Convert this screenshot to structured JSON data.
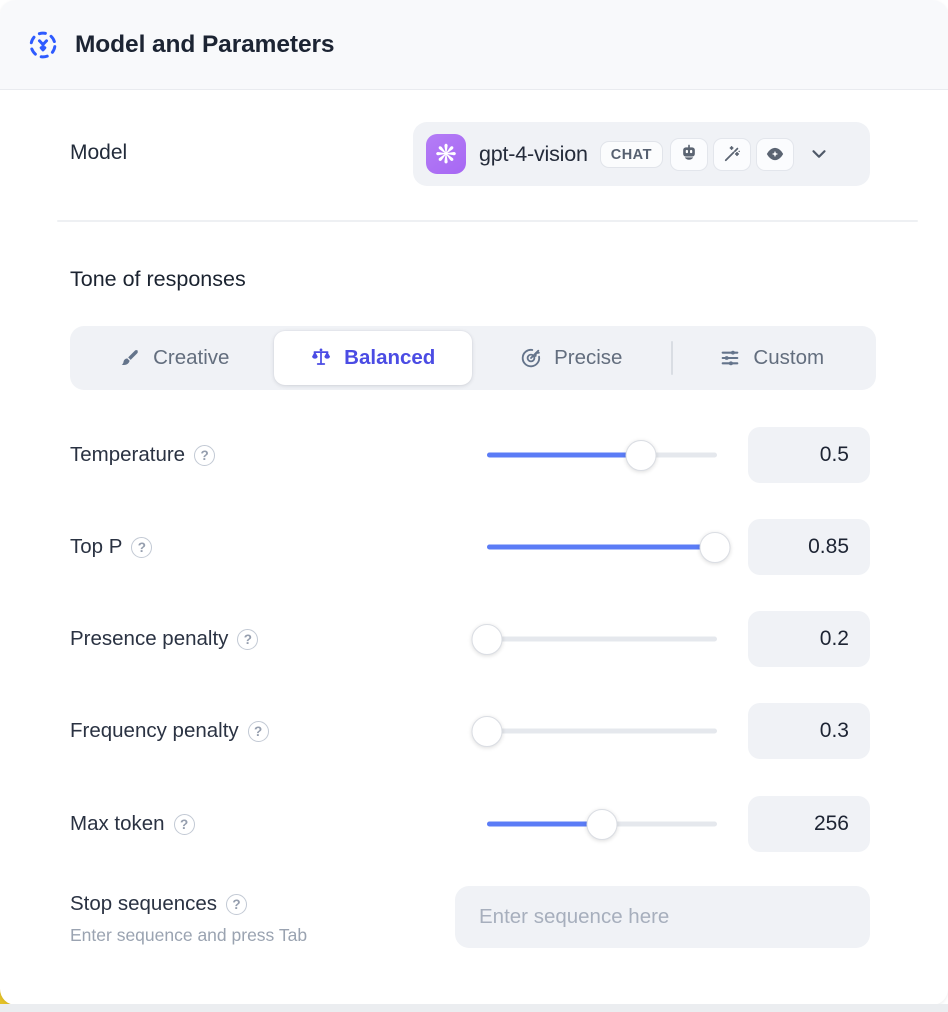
{
  "header": {
    "title": "Model and Parameters"
  },
  "model_row": {
    "label": "Model",
    "selected_model": "gpt-4-vision",
    "type_badge": "CHAT",
    "provider_icon": "openai-logo",
    "capability_icons": [
      "assistant-icon",
      "magic-wand-icon",
      "vision-eye-icon"
    ]
  },
  "tone": {
    "heading": "Tone of responses",
    "options": [
      {
        "label": "Creative",
        "icon": "paintbrush-icon",
        "selected": false
      },
      {
        "label": "Balanced",
        "icon": "balance-scale-icon",
        "selected": true
      },
      {
        "label": "Precise",
        "icon": "target-icon",
        "selected": false
      },
      {
        "label": "Custom",
        "icon": "sliders-icon",
        "selected": false
      }
    ]
  },
  "parameters": [
    {
      "label": "Temperature",
      "value": "0.5",
      "fill_pct": 67
    },
    {
      "label": "Top P",
      "value": "0.85",
      "fill_pct": 99
    },
    {
      "label": "Presence penalty",
      "value": "0.2",
      "fill_pct": 0
    },
    {
      "label": "Frequency penalty",
      "value": "0.3",
      "fill_pct": 0
    },
    {
      "label": "Max token",
      "value": "256",
      "fill_pct": 50
    }
  ],
  "stop_sequences": {
    "label": "Stop sequences",
    "hint": "Enter sequence and press Tab",
    "placeholder": "Enter sequence here"
  },
  "glyphs": {
    "help": "?",
    "provider_logo": "❋"
  },
  "colors": {
    "header_icon": "#2e5bff",
    "tone_selected": "#4b4ce4",
    "slider_accent": "#5b7cf6",
    "provider_badge": "#a767f3"
  }
}
